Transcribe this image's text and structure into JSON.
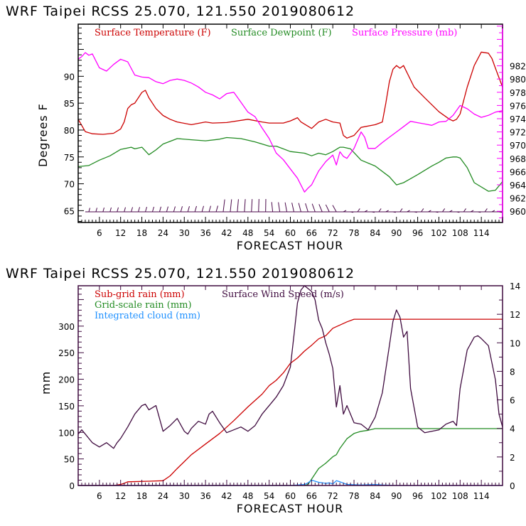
{
  "chart_data": [
    {
      "type": "line",
      "title": "WRF   Taipei RCSS   25.070, 121.550  2019080612",
      "xlabel": "FORECAST HOUR",
      "ylabel": "Degrees F",
      "y2label": "",
      "xlim": [
        0,
        120
      ],
      "ylim": [
        62.8,
        99.7
      ],
      "y2lim": [
        958.3,
        988.3
      ],
      "xticks": [
        6,
        12,
        18,
        24,
        30,
        36,
        42,
        48,
        54,
        60,
        66,
        72,
        78,
        84,
        90,
        96,
        102,
        108,
        114
      ],
      "yticks": [
        65,
        70,
        75,
        80,
        85,
        90
      ],
      "y2ticks": [
        960,
        962,
        964,
        966,
        968,
        970,
        972,
        974,
        976,
        978,
        980,
        982
      ],
      "grid": false,
      "legend": "top",
      "series": [
        {
          "name": "Surface Temperature (F)",
          "axis": "left",
          "color": "#cc0000",
          "x": [
            0,
            2,
            4,
            7,
            10,
            12,
            13,
            14,
            15,
            16,
            17,
            18,
            19,
            20,
            22,
            24,
            26,
            28,
            32,
            36,
            38,
            42,
            48,
            52,
            54,
            58,
            60,
            62,
            63,
            66,
            68,
            70,
            72,
            74,
            75,
            76,
            78,
            80,
            84,
            86,
            87,
            88,
            89,
            90,
            91,
            92,
            95,
            98,
            102,
            105,
            106,
            107,
            108,
            110,
            112,
            114,
            116,
            117,
            118,
            120
          ],
          "values": [
            82,
            79.7,
            79.3,
            79.2,
            79.4,
            80.2,
            81.5,
            84,
            84.7,
            85,
            86,
            87,
            87.4,
            86,
            84,
            82.7,
            82,
            81.5,
            81,
            81.5,
            81.3,
            81.4,
            82,
            81.5,
            81.3,
            81.3,
            81.7,
            82.3,
            81.5,
            80.3,
            81.5,
            82,
            81.5,
            81.3,
            79,
            78.5,
            79,
            80.5,
            81,
            81.5,
            85,
            89,
            91.3,
            92,
            91.5,
            92,
            88,
            86,
            83.4,
            82,
            81.7,
            82,
            83,
            88,
            92,
            94.5,
            94.3,
            93.3,
            91.5,
            88
          ]
        },
        {
          "name": "Surface Dewpoint (F)",
          "axis": "left",
          "color": "#228b22",
          "x": [
            0,
            3,
            6,
            9,
            12,
            15,
            16,
            18,
            20,
            22,
            24,
            28,
            32,
            36,
            40,
            42,
            46,
            48,
            50,
            54,
            56,
            60,
            64,
            66,
            68,
            70,
            72,
            74,
            75,
            77,
            80,
            84,
            88,
            90,
            92,
            96,
            100,
            102,
            104,
            106,
            107,
            108,
            110,
            112,
            116,
            118,
            120
          ],
          "values": [
            73.2,
            73.4,
            74.4,
            75.2,
            76.4,
            76.8,
            76.5,
            76.8,
            75.4,
            76.3,
            77.4,
            78.4,
            78.2,
            78,
            78.3,
            78.6,
            78.4,
            78.1,
            77.8,
            77,
            77,
            76,
            75.7,
            75.2,
            75.7,
            75.4,
            76,
            76.8,
            76.8,
            76.5,
            74.4,
            73.3,
            71.3,
            69.8,
            70.2,
            71.7,
            73.3,
            74,
            74.8,
            75,
            75,
            74.8,
            73,
            70.2,
            68.6,
            68.8,
            70.4
          ]
        },
        {
          "name": "Surface Pressure (mb)",
          "axis": "right",
          "color": "#ff00ff",
          "x": [
            0,
            1,
            2,
            3,
            4,
            6,
            8,
            10,
            12,
            14,
            16,
            18,
            20,
            22,
            24,
            26,
            28,
            30,
            32,
            34,
            36,
            38,
            40,
            42,
            44,
            46,
            48,
            50,
            52,
            54,
            56,
            58,
            60,
            62,
            64,
            65,
            66,
            68,
            70,
            72,
            73,
            74,
            75,
            76,
            78,
            80,
            81,
            82,
            84,
            86,
            88,
            90,
            92,
            94,
            96,
            98,
            100,
            102,
            104,
            106,
            108,
            110,
            112,
            114,
            116,
            118,
            120
          ],
          "values": [
            983,
            983.4,
            984,
            983.6,
            983.8,
            981.7,
            981.2,
            982.2,
            983,
            982.6,
            980.6,
            980.3,
            980.2,
            979.6,
            979.3,
            979.8,
            980,
            979.8,
            979.4,
            978.8,
            978,
            977.6,
            977,
            977.8,
            978,
            976.5,
            975,
            974.3,
            972.6,
            971,
            968.8,
            967.8,
            966.4,
            965,
            962.9,
            963.5,
            964,
            966.1,
            967.5,
            968.5,
            967,
            969,
            968.3,
            968,
            969.5,
            972,
            971.2,
            969.5,
            969.5,
            970.4,
            971.2,
            972,
            972.8,
            973.6,
            973.4,
            973.2,
            973,
            973.5,
            973.6,
            974.5,
            976,
            975.5,
            974.7,
            974.2,
            974.5,
            975,
            975.2
          ]
        }
      ],
      "wind_barbs": {
        "name": "Surface Wind (barbs)",
        "color": "#4b0a4b",
        "level_degF": 65,
        "note": "wind barbs plotted along bottom of temperature panel"
      }
    },
    {
      "type": "line",
      "title": "WRF   Taipei RCSS   25.070, 121.550  2019080612",
      "xlabel": "FORECAST HOUR",
      "ylabel": "mm",
      "xlim": [
        0,
        120
      ],
      "ylim": [
        0,
        376
      ],
      "y2lim": [
        0,
        14.0
      ],
      "xticks": [
        6,
        12,
        18,
        24,
        30,
        36,
        42,
        48,
        54,
        60,
        66,
        72,
        78,
        84,
        90,
        96,
        102,
        108,
        114
      ],
      "yticks": [
        0,
        50,
        100,
        150,
        200,
        250,
        300
      ],
      "y2ticks": [
        0,
        2,
        4,
        6,
        8,
        10,
        12,
        14
      ],
      "grid": false,
      "legend": "top-left",
      "series": [
        {
          "name": "Sub-grid rain (mm)",
          "axis": "left",
          "color": "#cc0000",
          "x": [
            0,
            8,
            10,
            12,
            13,
            14,
            20,
            24,
            26,
            28,
            30,
            32,
            36,
            40,
            44,
            48,
            52,
            54,
            56,
            58,
            60,
            62,
            64,
            66,
            68,
            70,
            72,
            74,
            76,
            78,
            120
          ],
          "values": [
            0,
            0,
            0,
            2,
            4,
            7,
            8,
            9,
            18,
            32,
            45,
            58,
            78,
            98,
            122,
            148,
            172,
            188,
            198,
            212,
            230,
            240,
            253,
            264,
            276,
            282,
            296,
            302,
            308,
            313,
            313
          ]
        },
        {
          "name": "Grid-scale rain (mm)",
          "axis": "left",
          "color": "#228b22",
          "x": [
            0,
            64,
            65,
            66,
            68,
            70,
            72,
            73,
            74,
            76,
            78,
            80,
            82,
            84,
            120
          ],
          "values": [
            0,
            0,
            2,
            12,
            32,
            42,
            54,
            58,
            70,
            88,
            98,
            102,
            104,
            107,
            107
          ]
        },
        {
          "name": "Integrated cloud (mm)",
          "axis": "left",
          "color": "#1e90ff",
          "x": [
            0,
            60,
            64,
            65,
            66,
            67,
            68,
            70,
            71,
            72,
            73,
            74,
            76,
            80,
            84,
            86,
            88,
            90,
            120
          ],
          "values": [
            0,
            0,
            2,
            5,
            10,
            8,
            6,
            4,
            5,
            3,
            9,
            7,
            2,
            1,
            2,
            1,
            0.5,
            0,
            0
          ]
        },
        {
          "name": "Surface Wind Speed (m/s)",
          "axis": "right",
          "color": "#3f0b3f",
          "x": [
            0,
            1,
            2,
            4,
            6,
            8,
            10,
            11,
            12,
            14,
            16,
            18,
            19,
            20,
            22,
            24,
            26,
            28,
            30,
            31,
            32,
            34,
            36,
            37,
            38,
            40,
            42,
            44,
            46,
            48,
            50,
            52,
            54,
            56,
            58,
            60,
            61,
            62,
            63,
            64,
            65,
            66,
            67,
            68,
            69,
            70,
            71,
            72,
            73,
            74,
            75,
            76,
            78,
            80,
            82,
            84,
            86,
            88,
            89,
            90,
            91,
            92,
            93,
            94,
            96,
            98,
            100,
            102,
            104,
            106,
            107,
            108,
            110,
            112,
            113,
            114,
            116,
            118,
            119,
            120
          ],
          "values": [
            3.6,
            3.9,
            3.6,
            3.0,
            2.7,
            3.0,
            2.6,
            3.0,
            3.3,
            4.1,
            5.0,
            5.6,
            5.7,
            5.3,
            5.6,
            3.8,
            4.2,
            4.7,
            3.8,
            3.6,
            4.0,
            4.5,
            4.3,
            5.0,
            5.2,
            4.4,
            3.7,
            3.9,
            4.1,
            3.8,
            4.2,
            5.0,
            5.6,
            6.2,
            7.0,
            8.3,
            10.5,
            12.8,
            13.7,
            14.0,
            13.8,
            13.6,
            13.0,
            11.6,
            11.0,
            10.0,
            9.2,
            8.2,
            5.5,
            7.0,
            5.0,
            5.6,
            4.4,
            4.3,
            3.9,
            4.8,
            6.5,
            9.8,
            11.5,
            12.3,
            11.8,
            10.4,
            10.8,
            6.8,
            4.1,
            3.7,
            3.8,
            3.9,
            4.3,
            4.5,
            4.2,
            6.8,
            9.5,
            10.4,
            10.5,
            10.3,
            9.8,
            7.4,
            5.0,
            4.1
          ]
        }
      ]
    }
  ]
}
